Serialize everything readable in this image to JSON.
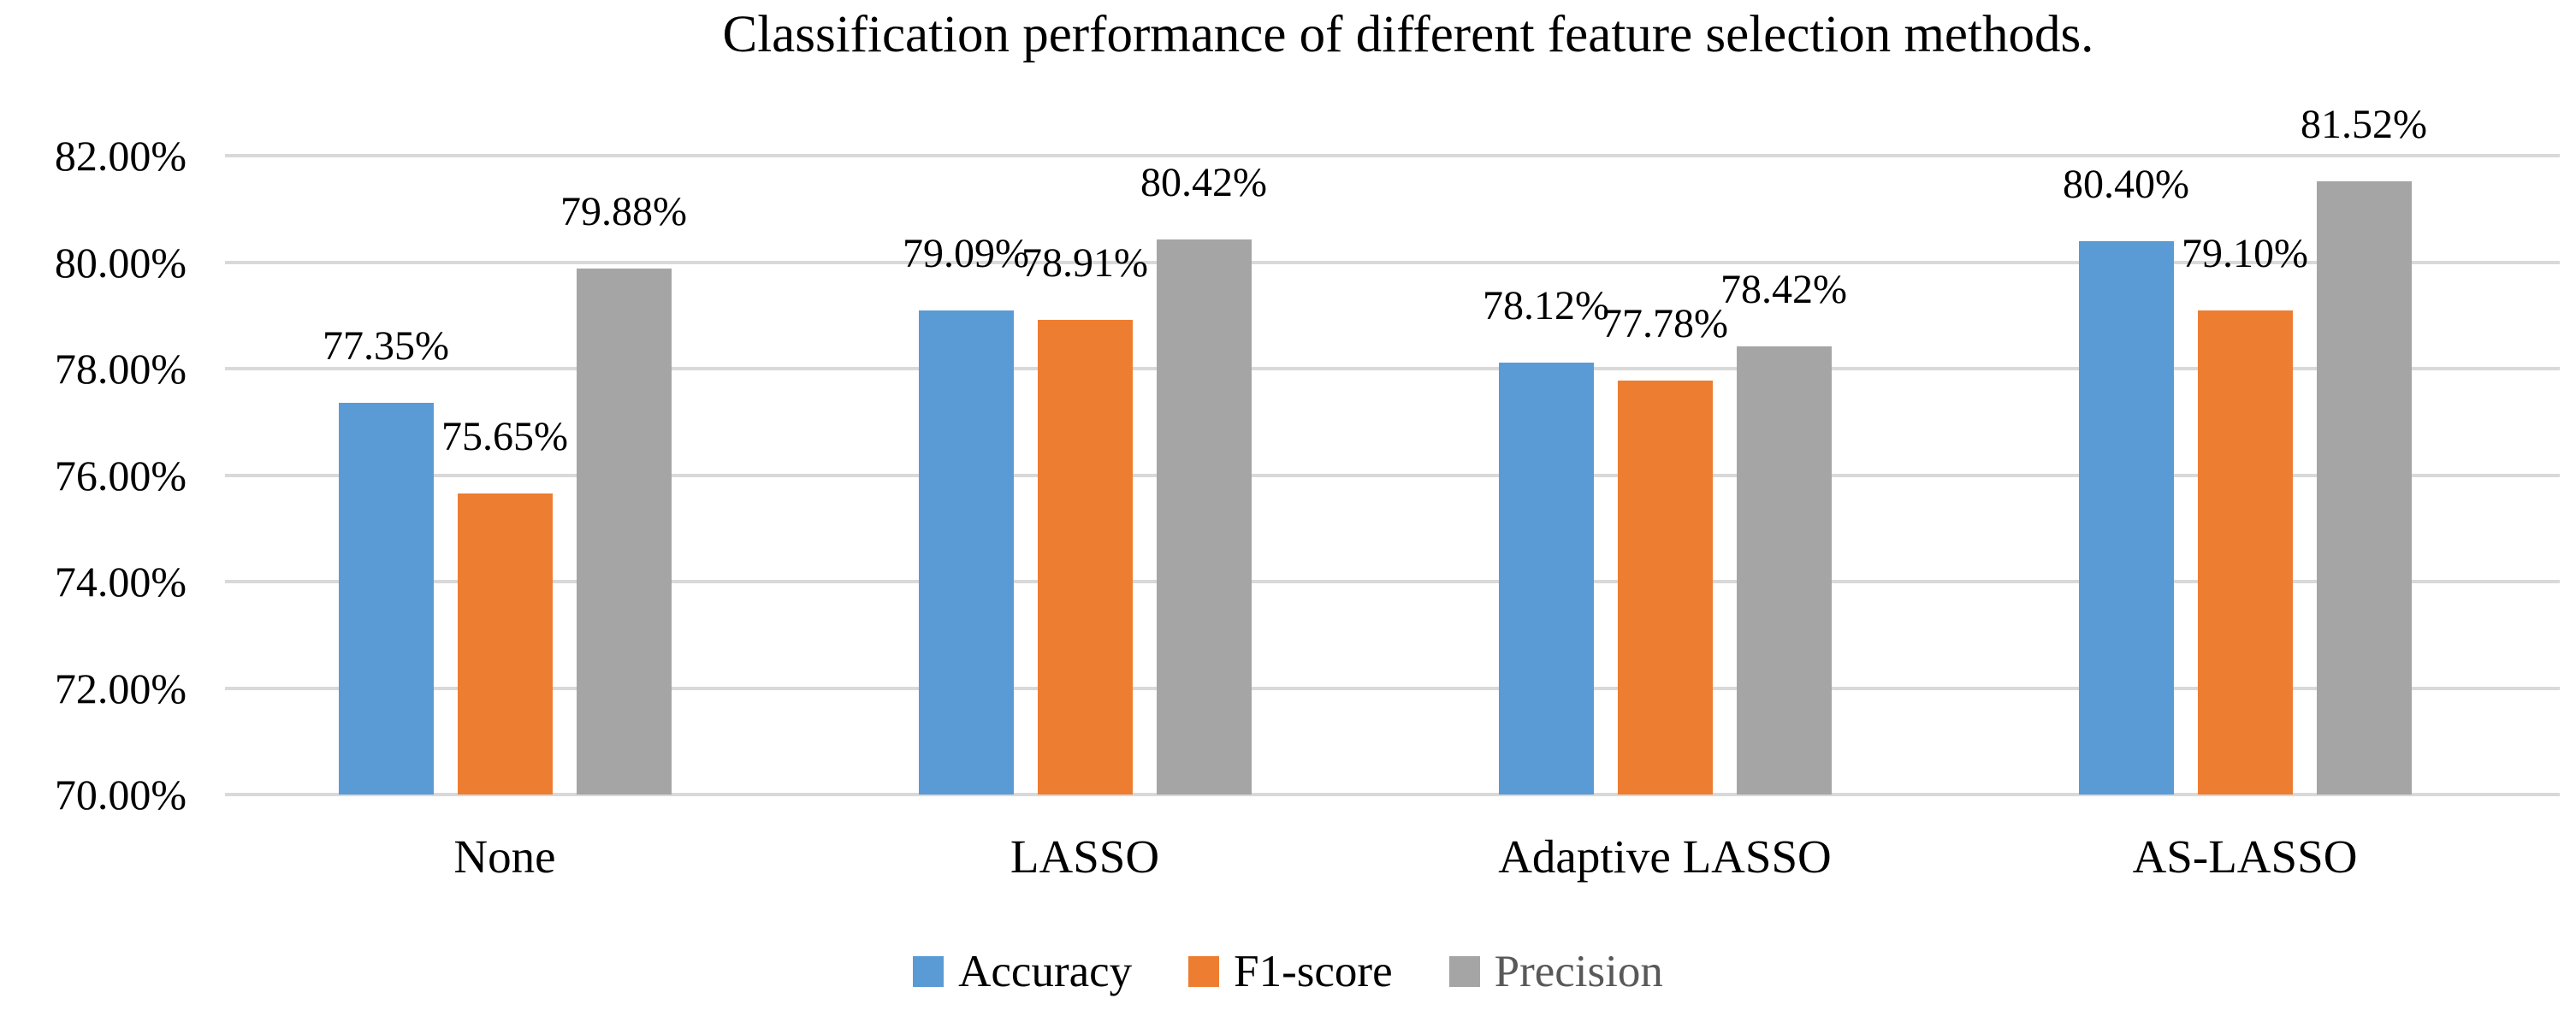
{
  "title": "Classification performance of different feature selection methods.",
  "chart_data": {
    "type": "bar",
    "title": "Classification performance of different feature selection methods.",
    "categories": [
      "None",
      "LASSO",
      "Adaptive LASSO",
      "AS-LASSO"
    ],
    "series": [
      {
        "name": "Accuracy",
        "color": "#5B9BD5",
        "values": [
          77.35,
          79.09,
          78.12,
          80.4
        ]
      },
      {
        "name": "F1-score",
        "color": "#ED7D31",
        "values": [
          75.65,
          78.91,
          77.78,
          79.1
        ]
      },
      {
        "name": "Precision",
        "color": "#A5A5A5",
        "values": [
          79.88,
          80.42,
          78.42,
          81.52
        ]
      }
    ],
    "data_labels": [
      [
        "77.35%",
        "75.65%",
        "79.88%"
      ],
      [
        "79.09%",
        "78.91%",
        "80.42%"
      ],
      [
        "78.12%",
        "77.78%",
        "78.42%"
      ],
      [
        "80.40%",
        "79.10%",
        "81.52%"
      ]
    ],
    "y_axis": {
      "min": 70,
      "max": 82,
      "step": 2,
      "tick_labels": [
        "70.00%",
        "72.00%",
        "74.00%",
        "76.00%",
        "78.00%",
        "80.00%",
        "82.00%"
      ]
    },
    "xlabel": "",
    "ylabel": "",
    "grid": true,
    "gridline_color": "#D9D9D9",
    "legend_position": "bottom",
    "legend_text_colors": [
      "#000000",
      "#000000",
      "#595959"
    ]
  }
}
